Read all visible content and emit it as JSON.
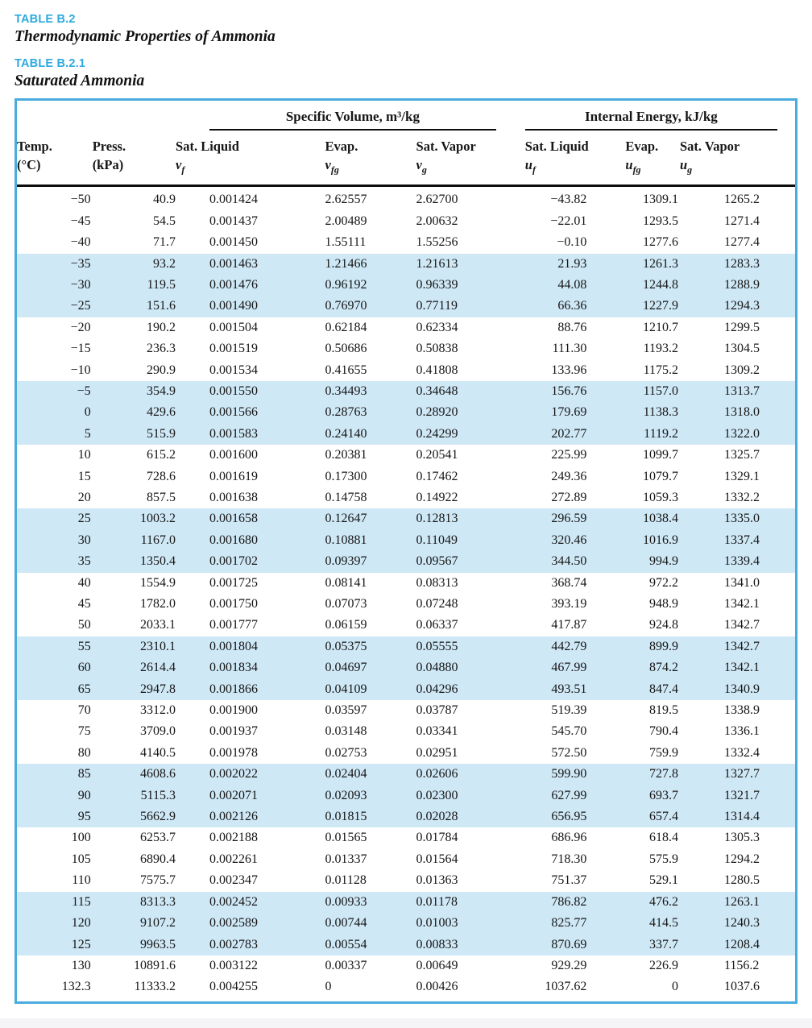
{
  "page": {
    "label_1": "TABLE B.2",
    "title_1": "Thermodynamic Properties of Ammonia",
    "label_2": "TABLE B.2.1",
    "title_2": "Saturated Ammonia"
  },
  "colors": {
    "accent_blue": "#2ea9de",
    "row_band_blue": "#cfe8f6",
    "table_border_blue": "#4aabde",
    "rule_black": "#0d0d0d"
  },
  "table": {
    "group_headers": [
      {
        "label": "Specific Volume, m³/kg"
      },
      {
        "label": "Internal Energy, kJ/kg"
      }
    ],
    "columns": [
      {
        "line1": "Temp.",
        "line2": "(°C)"
      },
      {
        "line1": "Press.",
        "line2": "(kPa)"
      },
      {
        "line1": "Sat. Liquid",
        "sym": "v",
        "sub": "f"
      },
      {
        "line1": "Evap.",
        "sym": "v",
        "sub": "fg"
      },
      {
        "line1": "Sat. Vapor",
        "sym": "v",
        "sub": "g"
      },
      {
        "line1": "Sat. Liquid",
        "sym": "u",
        "sub": "f"
      },
      {
        "line1": "Evap.",
        "sym": "u",
        "sub": "fg"
      },
      {
        "line1": "Sat. Vapor",
        "sym": "u",
        "sub": "g"
      }
    ],
    "band_group_size": 3,
    "rows": [
      [
        "−50",
        "40.9",
        "0.001424",
        "2.62557",
        "2.62700",
        "−43.82",
        "1309.1",
        "1265.2"
      ],
      [
        "−45",
        "54.5",
        "0.001437",
        "2.00489",
        "2.00632",
        "−22.01",
        "1293.5",
        "1271.4"
      ],
      [
        "−40",
        "71.7",
        "0.001450",
        "1.55111",
        "1.55256",
        "−0.10",
        "1277.6",
        "1277.4"
      ],
      [
        "−35",
        "93.2",
        "0.001463",
        "1.21466",
        "1.21613",
        "21.93",
        "1261.3",
        "1283.3"
      ],
      [
        "−30",
        "119.5",
        "0.001476",
        "0.96192",
        "0.96339",
        "44.08",
        "1244.8",
        "1288.9"
      ],
      [
        "−25",
        "151.6",
        "0.001490",
        "0.76970",
        "0.77119",
        "66.36",
        "1227.9",
        "1294.3"
      ],
      [
        "−20",
        "190.2",
        "0.001504",
        "0.62184",
        "0.62334",
        "88.76",
        "1210.7",
        "1299.5"
      ],
      [
        "−15",
        "236.3",
        "0.001519",
        "0.50686",
        "0.50838",
        "111.30",
        "1193.2",
        "1304.5"
      ],
      [
        "−10",
        "290.9",
        "0.001534",
        "0.41655",
        "0.41808",
        "133.96",
        "1175.2",
        "1309.2"
      ],
      [
        "−5",
        "354.9",
        "0.001550",
        "0.34493",
        "0.34648",
        "156.76",
        "1157.0",
        "1313.7"
      ],
      [
        "0",
        "429.6",
        "0.001566",
        "0.28763",
        "0.28920",
        "179.69",
        "1138.3",
        "1318.0"
      ],
      [
        "5",
        "515.9",
        "0.001583",
        "0.24140",
        "0.24299",
        "202.77",
        "1119.2",
        "1322.0"
      ],
      [
        "10",
        "615.2",
        "0.001600",
        "0.20381",
        "0.20541",
        "225.99",
        "1099.7",
        "1325.7"
      ],
      [
        "15",
        "728.6",
        "0.001619",
        "0.17300",
        "0.17462",
        "249.36",
        "1079.7",
        "1329.1"
      ],
      [
        "20",
        "857.5",
        "0.001638",
        "0.14758",
        "0.14922",
        "272.89",
        "1059.3",
        "1332.2"
      ],
      [
        "25",
        "1003.2",
        "0.001658",
        "0.12647",
        "0.12813",
        "296.59",
        "1038.4",
        "1335.0"
      ],
      [
        "30",
        "1167.0",
        "0.001680",
        "0.10881",
        "0.11049",
        "320.46",
        "1016.9",
        "1337.4"
      ],
      [
        "35",
        "1350.4",
        "0.001702",
        "0.09397",
        "0.09567",
        "344.50",
        "994.9",
        "1339.4"
      ],
      [
        "40",
        "1554.9",
        "0.001725",
        "0.08141",
        "0.08313",
        "368.74",
        "972.2",
        "1341.0"
      ],
      [
        "45",
        "1782.0",
        "0.001750",
        "0.07073",
        "0.07248",
        "393.19",
        "948.9",
        "1342.1"
      ],
      [
        "50",
        "2033.1",
        "0.001777",
        "0.06159",
        "0.06337",
        "417.87",
        "924.8",
        "1342.7"
      ],
      [
        "55",
        "2310.1",
        "0.001804",
        "0.05375",
        "0.05555",
        "442.79",
        "899.9",
        "1342.7"
      ],
      [
        "60",
        "2614.4",
        "0.001834",
        "0.04697",
        "0.04880",
        "467.99",
        "874.2",
        "1342.1"
      ],
      [
        "65",
        "2947.8",
        "0.001866",
        "0.04109",
        "0.04296",
        "493.51",
        "847.4",
        "1340.9"
      ],
      [
        "70",
        "3312.0",
        "0.001900",
        "0.03597",
        "0.03787",
        "519.39",
        "819.5",
        "1338.9"
      ],
      [
        "75",
        "3709.0",
        "0.001937",
        "0.03148",
        "0.03341",
        "545.70",
        "790.4",
        "1336.1"
      ],
      [
        "80",
        "4140.5",
        "0.001978",
        "0.02753",
        "0.02951",
        "572.50",
        "759.9",
        "1332.4"
      ],
      [
        "85",
        "4608.6",
        "0.002022",
        "0.02404",
        "0.02606",
        "599.90",
        "727.8",
        "1327.7"
      ],
      [
        "90",
        "5115.3",
        "0.002071",
        "0.02093",
        "0.02300",
        "627.99",
        "693.7",
        "1321.7"
      ],
      [
        "95",
        "5662.9",
        "0.002126",
        "0.01815",
        "0.02028",
        "656.95",
        "657.4",
        "1314.4"
      ],
      [
        "100",
        "6253.7",
        "0.002188",
        "0.01565",
        "0.01784",
        "686.96",
        "618.4",
        "1305.3"
      ],
      [
        "105",
        "6890.4",
        "0.002261",
        "0.01337",
        "0.01564",
        "718.30",
        "575.9",
        "1294.2"
      ],
      [
        "110",
        "7575.7",
        "0.002347",
        "0.01128",
        "0.01363",
        "751.37",
        "529.1",
        "1280.5"
      ],
      [
        "115",
        "8313.3",
        "0.002452",
        "0.00933",
        "0.01178",
        "786.82",
        "476.2",
        "1263.1"
      ],
      [
        "120",
        "9107.2",
        "0.002589",
        "0.00744",
        "0.01003",
        "825.77",
        "414.5",
        "1240.3"
      ],
      [
        "125",
        "9963.5",
        "0.002783",
        "0.00554",
        "0.00833",
        "870.69",
        "337.7",
        "1208.4"
      ],
      [
        "130",
        "10891.6",
        "0.003122",
        "0.00337",
        "0.00649",
        "929.29",
        "226.9",
        "1156.2"
      ],
      [
        "132.3",
        "11333.2",
        "0.004255",
        "0",
        "0.00426",
        "1037.62",
        "0",
        "1037.6"
      ]
    ]
  }
}
